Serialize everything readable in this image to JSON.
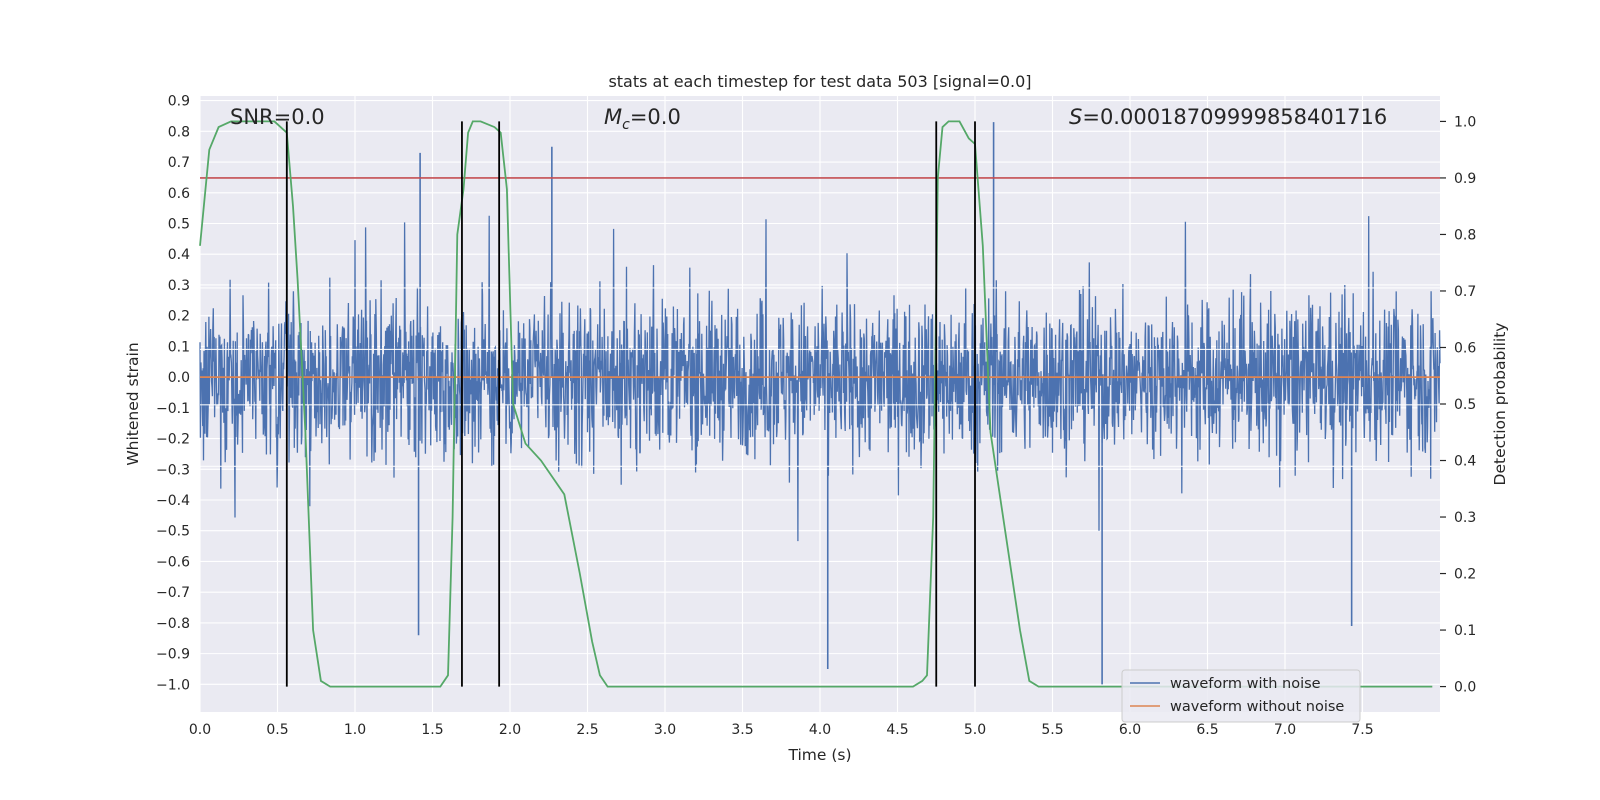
{
  "chart_data": {
    "type": "line",
    "title": "stats at each timestep for test data 503 [signal=0.0]",
    "xlabel": "Time (s)",
    "ylabel": "Whitened strain",
    "ylabel_right": "Detection probability",
    "xlim": [
      0.0,
      8.0
    ],
    "ylim": [
      -1.09,
      0.915
    ],
    "ylim_right": [
      -0.045,
      1.045
    ],
    "x_ticks": [
      "0.0",
      "0.5",
      "1.0",
      "1.5",
      "2.0",
      "2.5",
      "3.0",
      "3.5",
      "4.0",
      "4.5",
      "5.0",
      "5.5",
      "6.0",
      "6.5",
      "7.0",
      "7.5"
    ],
    "y_ticks": [
      "0.9",
      "0.8",
      "0.7",
      "0.6",
      "0.5",
      "0.4",
      "0.3",
      "0.2",
      "0.1",
      "0.0",
      "−0.1",
      "−0.2",
      "−0.3",
      "−0.4",
      "−0.5",
      "−0.6",
      "−0.7",
      "−0.8",
      "−0.9",
      "−1.0"
    ],
    "y_right_ticks": [
      "1.0",
      "0.9",
      "0.8",
      "0.7",
      "0.6",
      "0.5",
      "0.4",
      "0.3",
      "0.2",
      "0.1",
      "0.0"
    ],
    "annotations": {
      "snr_label": "SNR=0.0",
      "mc_symbol": "M",
      "mc_sub": "c",
      "mc_value": "=0.0",
      "s_symbol": "S",
      "s_value": "=0.00018709999858401716"
    },
    "threshold": {
      "value": 0.9,
      "color": "#c44e52"
    },
    "event_lines_x": [
      0.56,
      1.69,
      1.93,
      4.75,
      5.0
    ],
    "series": [
      {
        "name": "waveform with noise",
        "color": "#4c72b0",
        "envelope": "dense whitened noise, mostly within about ±0.45, peaks near 0.83 and troughs near −1.0",
        "notable_peaks": [
          {
            "x": 0.56,
            "y": 0.82
          },
          {
            "x": 1.42,
            "y": 0.73
          },
          {
            "x": 2.27,
            "y": 0.75
          },
          {
            "x": 5.12,
            "y": 0.83
          },
          {
            "x": 1.41,
            "y": -0.84
          },
          {
            "x": 4.05,
            "y": -0.95
          },
          {
            "x": 5.82,
            "y": -1.0
          },
          {
            "x": 7.43,
            "y": -0.81
          }
        ]
      },
      {
        "name": "waveform without noise",
        "color": "#dd8452",
        "x": [
          0.0,
          8.0
        ],
        "y": [
          0.0,
          0.0
        ]
      },
      {
        "name": "",
        "color": "#55a868",
        "axis": "right",
        "x": [
          0.0,
          0.06,
          0.12,
          0.2,
          0.3,
          0.4,
          0.48,
          0.52,
          0.56,
          0.6,
          0.63,
          0.68,
          0.73,
          0.78,
          0.84,
          1.0,
          1.3,
          1.55,
          1.6,
          1.63,
          1.66,
          1.7,
          1.73,
          1.76,
          1.81,
          1.9,
          1.94,
          1.98,
          2.02,
          2.1,
          2.2,
          2.35,
          2.45,
          2.53,
          2.58,
          2.63,
          2.69,
          2.75,
          3.0,
          3.5,
          4.0,
          4.4,
          4.6,
          4.66,
          4.69,
          4.73,
          4.76,
          4.79,
          4.83,
          4.9,
          4.96,
          5.0,
          5.05,
          5.1,
          5.17,
          5.23,
          5.29,
          5.35,
          5.41,
          5.48,
          6.0,
          7.0,
          7.95
        ],
        "y": [
          0.78,
          0.95,
          0.99,
          1.0,
          1.0,
          1.0,
          1.0,
          0.99,
          0.98,
          0.85,
          0.72,
          0.45,
          0.1,
          0.01,
          0.0,
          0.0,
          0.0,
          0.0,
          0.02,
          0.3,
          0.8,
          0.88,
          0.98,
          1.0,
          1.0,
          0.99,
          0.98,
          0.88,
          0.5,
          0.43,
          0.4,
          0.34,
          0.2,
          0.08,
          0.02,
          0.0,
          0.0,
          0.0,
          0.0,
          0.0,
          0.0,
          0.0,
          0.0,
          0.01,
          0.02,
          0.3,
          0.9,
          0.99,
          1.0,
          1.0,
          0.97,
          0.96,
          0.78,
          0.45,
          0.32,
          0.21,
          0.1,
          0.01,
          0.0,
          0.0,
          0.0,
          0.0,
          0.0
        ]
      }
    ],
    "legend": {
      "placement": "lower-right",
      "entries": [
        "waveform with noise",
        "waveform without noise"
      ]
    },
    "grid": true
  }
}
